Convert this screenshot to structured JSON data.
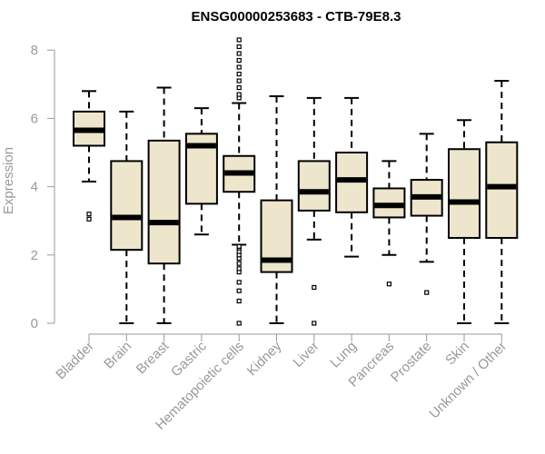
{
  "chart_data": {
    "type": "boxplot",
    "title": "ENSG00000253683 - CTB-79E8.3",
    "xlabel": "",
    "ylabel": "Expression",
    "ylim": [
      0,
      8
    ],
    "yticks": [
      0,
      2,
      4,
      6,
      8
    ],
    "box_fill": "#ede6cc",
    "median_color": "#000000",
    "axis_color": "#999999",
    "categories": [
      "Bladder",
      "Brain",
      "Breast",
      "Gastric",
      "Hematopoietic cells",
      "Kidney",
      "Liver",
      "Lung",
      "Pancreas",
      "Prostate",
      "Skin",
      "Unknown / Other"
    ],
    "boxes": [
      {
        "label": "Bladder",
        "whisker_low": 4.15,
        "q1": 5.2,
        "median": 5.65,
        "q3": 6.2,
        "whisker_high": 6.8,
        "outliers": [
          3.2,
          3.05
        ]
      },
      {
        "label": "Brain",
        "whisker_low": 0.0,
        "q1": 2.15,
        "median": 3.1,
        "q3": 4.75,
        "whisker_high": 6.2,
        "outliers": []
      },
      {
        "label": "Breast",
        "whisker_low": 0.0,
        "q1": 1.75,
        "median": 2.95,
        "q3": 5.35,
        "whisker_high": 6.9,
        "outliers": []
      },
      {
        "label": "Gastric",
        "whisker_low": 2.6,
        "q1": 3.5,
        "median": 5.2,
        "q3": 5.55,
        "whisker_high": 6.3,
        "outliers": []
      },
      {
        "label": "Hematopoietic cells",
        "whisker_low": 2.3,
        "q1": 3.85,
        "median": 4.4,
        "q3": 4.9,
        "whisker_high": 6.45,
        "outliers": [
          0.0,
          0.65,
          0.95,
          1.2,
          1.5,
          1.6,
          1.75,
          1.9,
          2.0,
          2.1,
          2.2,
          2.25,
          6.6,
          6.7,
          6.9,
          7.1,
          7.3,
          7.5,
          7.7,
          7.9,
          8.1,
          8.3
        ]
      },
      {
        "label": "Kidney",
        "whisker_low": 0.0,
        "q1": 1.5,
        "median": 1.85,
        "q3": 3.6,
        "whisker_high": 6.65,
        "outliers": []
      },
      {
        "label": "Liver",
        "whisker_low": 2.45,
        "q1": 3.3,
        "median": 3.85,
        "q3": 4.75,
        "whisker_high": 6.6,
        "outliers": [
          1.05,
          0.0
        ]
      },
      {
        "label": "Lung",
        "whisker_low": 1.95,
        "q1": 3.25,
        "median": 4.2,
        "q3": 5.0,
        "whisker_high": 6.6,
        "outliers": []
      },
      {
        "label": "Pancreas",
        "whisker_low": 2.0,
        "q1": 3.1,
        "median": 3.45,
        "q3": 3.95,
        "whisker_high": 4.75,
        "outliers": [
          1.15
        ]
      },
      {
        "label": "Prostate",
        "whisker_low": 1.8,
        "q1": 3.15,
        "median": 3.7,
        "q3": 4.2,
        "whisker_high": 5.55,
        "outliers": [
          0.9
        ]
      },
      {
        "label": "Skin",
        "whisker_low": 0.0,
        "q1": 2.5,
        "median": 3.55,
        "q3": 5.1,
        "whisker_high": 5.95,
        "outliers": []
      },
      {
        "label": "Unknown / Other",
        "whisker_low": 0.0,
        "q1": 2.5,
        "median": 4.0,
        "q3": 5.3,
        "whisker_high": 7.1,
        "outliers": []
      }
    ]
  }
}
